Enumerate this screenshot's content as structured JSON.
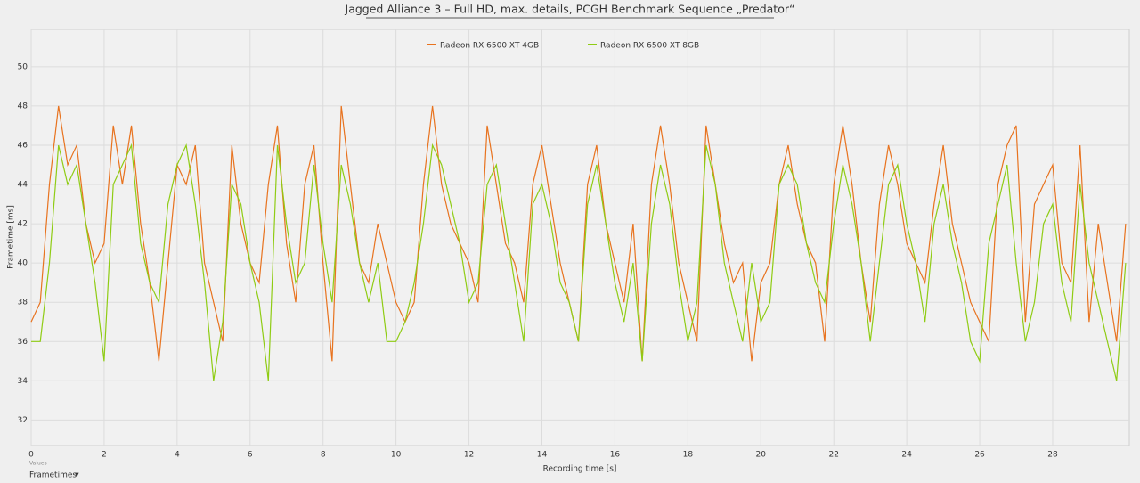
{
  "chart_data": {
    "type": "line",
    "title": "Jagged Alliance 3 – Full HD, max. details, PCGH Benchmark Sequence „Predator“",
    "x_label": "Recording time [s]",
    "y_label": "Frametime [ms]",
    "selector_caption": "Values",
    "selector_value": "Frametimes",
    "xlim": [
      0,
      30.1
    ],
    "ylim": [
      30.7,
      51.9
    ],
    "xticks": [
      0,
      2,
      4,
      6,
      8,
      10,
      12,
      14,
      16,
      18,
      20,
      22,
      24,
      26,
      28
    ],
    "yticks": [
      32,
      34,
      36,
      38,
      40,
      42,
      44,
      46,
      48,
      50
    ],
    "grid": true,
    "legend": "top",
    "x": [
      0,
      0.25,
      0.5,
      0.75,
      1,
      1.25,
      1.5,
      1.75,
      2,
      2.25,
      2.5,
      2.75,
      3,
      3.25,
      3.5,
      3.75,
      4,
      4.25,
      4.5,
      4.75,
      5,
      5.25,
      5.5,
      5.75,
      6,
      6.25,
      6.5,
      6.75,
      7,
      7.25,
      7.5,
      7.75,
      8,
      8.25,
      8.5,
      8.75,
      9,
      9.25,
      9.5,
      9.75,
      10,
      10.25,
      10.5,
      10.75,
      11,
      11.25,
      11.5,
      11.75,
      12,
      12.25,
      12.5,
      12.75,
      13,
      13.25,
      13.5,
      13.75,
      14,
      14.25,
      14.5,
      14.75,
      15,
      15.25,
      15.5,
      15.75,
      16,
      16.25,
      16.5,
      16.75,
      17,
      17.25,
      17.5,
      17.75,
      18,
      18.25,
      18.5,
      18.75,
      19,
      19.25,
      19.5,
      19.75,
      20,
      20.25,
      20.5,
      20.75,
      21,
      21.25,
      21.5,
      21.75,
      22,
      22.25,
      22.5,
      22.75,
      23,
      23.25,
      23.5,
      23.75,
      24,
      24.25,
      24.5,
      24.75,
      25,
      25.25,
      25.5,
      25.75,
      26,
      26.25,
      26.5,
      26.75,
      27,
      27.25,
      27.5,
      27.75,
      28,
      28.25,
      28.5,
      28.75,
      29,
      29.25,
      29.5,
      29.75,
      30
    ],
    "series": [
      {
        "name": "Radeon RX 6500 XT 4GB",
        "color": "#e8731f",
        "values": [
          37,
          38,
          44,
          48,
          45,
          46,
          42,
          40,
          41,
          47,
          44,
          47,
          42,
          39,
          35,
          40,
          45,
          44,
          46,
          40,
          38,
          36,
          46,
          42,
          40,
          39,
          44,
          47,
          41,
          38,
          44,
          46,
          40,
          35,
          48,
          44,
          40,
          39,
          42,
          40,
          38,
          37,
          38,
          44,
          48,
          44,
          42,
          41,
          40,
          38,
          47,
          44,
          41,
          40,
          38,
          44,
          46,
          43,
          40,
          38,
          36,
          44,
          46,
          42,
          40,
          38,
          42,
          35,
          44,
          47,
          44,
          40,
          38,
          36,
          47,
          44,
          41,
          39,
          40,
          35,
          39,
          40,
          44,
          46,
          43,
          41,
          40,
          36,
          44,
          47,
          44,
          40,
          37,
          43,
          46,
          44,
          41,
          40,
          39,
          43,
          46,
          42,
          40,
          38,
          37,
          36,
          44,
          46,
          47,
          37,
          43,
          44,
          45,
          40,
          39,
          46,
          37,
          42,
          39,
          36,
          42
        ]
      },
      {
        "name": "Radeon RX 6500 XT 8GB",
        "color": "#8fcc14",
        "values": [
          36,
          36,
          40,
          46,
          44,
          45,
          42,
          39,
          35,
          44,
          45,
          46,
          41,
          39,
          38,
          43,
          45,
          46,
          43,
          39,
          34,
          37,
          44,
          43,
          40,
          38,
          34,
          46,
          42,
          39,
          40,
          45,
          41,
          38,
          45,
          43,
          40,
          38,
          40,
          36,
          36,
          37,
          39,
          42,
          46,
          45,
          43,
          41,
          38,
          39,
          44,
          45,
          42,
          39,
          36,
          43,
          44,
          42,
          39,
          38,
          36,
          43,
          45,
          42,
          39,
          37,
          40,
          35,
          42,
          45,
          43,
          39,
          36,
          38,
          46,
          44,
          40,
          38,
          36,
          40,
          37,
          38,
          44,
          45,
          44,
          41,
          39,
          38,
          42,
          45,
          43,
          40,
          36,
          40,
          44,
          45,
          42,
          40,
          37,
          42,
          44,
          41,
          39,
          36,
          35,
          41,
          43,
          45,
          40,
          36,
          38,
          42,
          43,
          39,
          37,
          44,
          40,
          38,
          36,
          34,
          40
        ]
      }
    ]
  }
}
